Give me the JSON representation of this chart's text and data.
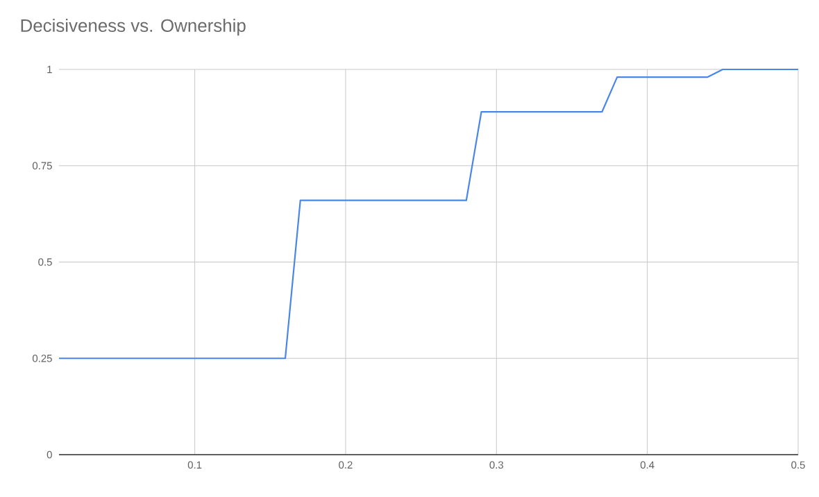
{
  "chart_data": {
    "type": "line",
    "title": "Decisiveness vs. Ownership",
    "x": [
      0.01,
      0.16,
      0.17,
      0.28,
      0.29,
      0.37,
      0.38,
      0.44,
      0.45,
      0.49,
      0.5
    ],
    "series": [
      {
        "color": "#4a86e8",
        "values": [
          0.25,
          0.25,
          0.66,
          0.66,
          0.89,
          0.89,
          0.98,
          0.98,
          1.0,
          1.0,
          1.0
        ]
      }
    ],
    "xlim": [
      0.01,
      0.5
    ],
    "ylim": [
      0,
      1
    ],
    "xticks": [
      0.1,
      0.2,
      0.3,
      0.4,
      0.5
    ],
    "yticks": [
      0,
      0.25,
      0.5,
      0.75,
      1
    ],
    "grid": true
  }
}
